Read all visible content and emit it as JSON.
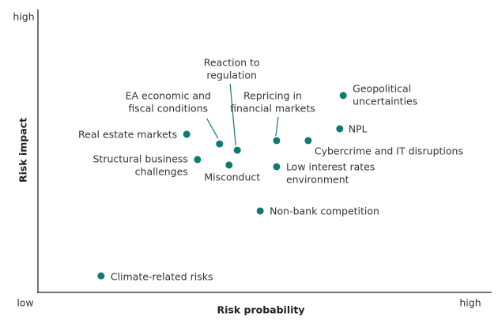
{
  "chart_data": {
    "type": "scatter",
    "x_label": "Risk probability",
    "y_label": "Risk impact",
    "xlim": [
      0,
      10
    ],
    "ylim": [
      0,
      10
    ],
    "xticks": [
      {
        "value": 0,
        "label": "low"
      },
      {
        "value": 10,
        "label": "high"
      }
    ],
    "yticks": [
      {
        "value": 10,
        "label": "high"
      }
    ],
    "color": "#0e7a72",
    "labels": [
      [
        "Climate-related risks"
      ],
      [
        "Real estate markets"
      ],
      [
        "Structural business",
        "challenges"
      ],
      [
        "EA economic and",
        "fiscal conditions"
      ],
      [
        "Reaction to",
        "regulation"
      ],
      [
        "Misconduct"
      ],
      [
        "Repricing in",
        "financial markets"
      ],
      [
        "Low interest rates",
        "environment"
      ],
      [
        "Non-bank competition"
      ],
      [
        "Cybercrime and IT disruptions"
      ],
      [
        "NPL"
      ],
      [
        "Geopolitical",
        "uncertainties"
      ]
    ],
    "x": [
      1.46,
      3.44,
      3.69,
      4.2,
      4.61,
      4.42,
      5.52,
      5.52,
      5.14,
      6.25,
      6.98,
      7.06
    ],
    "values": [
      0.6,
      5.75,
      4.83,
      5.4,
      5.17,
      4.63,
      5.52,
      4.57,
      2.96,
      5.52,
      5.95,
      7.16
    ]
  }
}
